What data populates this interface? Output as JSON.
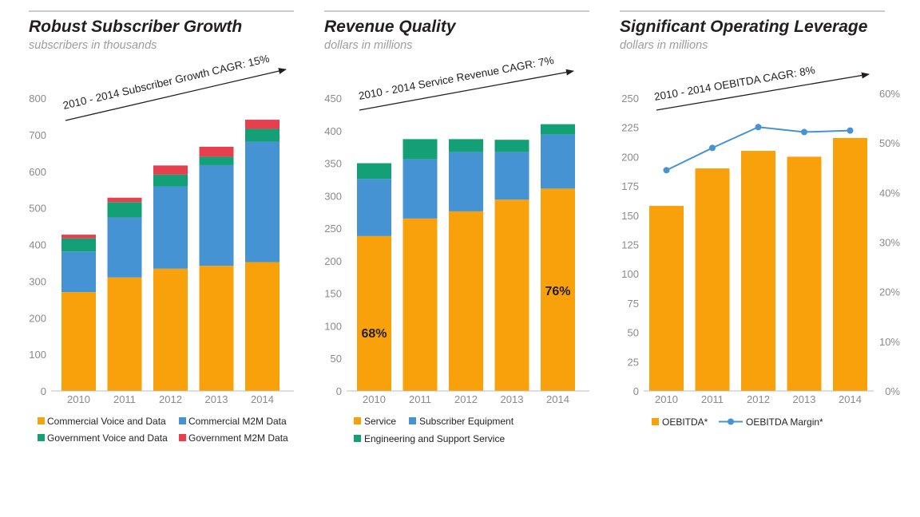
{
  "colors": {
    "commercial_voice": "#f8a10b",
    "commercial_m2m": "#4593d3",
    "government_voice": "#14a077",
    "government_m2m": "#e63f4e",
    "service": "#f8a10b",
    "subscriber_equipment": "#4593d3",
    "engineering": "#14a077",
    "oebitda": "#f8a10b",
    "margin_line": "#4593d3"
  },
  "chart_data": [
    {
      "type": "bar",
      "stacked": true,
      "title": "Robust Subscriber Growth",
      "subtitle": "subscribers in thousands",
      "annotation": "2010 - 2014 Subscriber Growth CAGR: 15%",
      "categories": [
        "2010",
        "2011",
        "2012",
        "2013",
        "2014"
      ],
      "ylim": [
        0,
        800
      ],
      "yticks": [
        "0",
        "100",
        "200",
        "300",
        "400",
        "500",
        "600",
        "700",
        "800"
      ],
      "series": [
        {
          "name": "Commercial Voice and Data",
          "values": [
            270,
            310,
            334,
            342,
            352
          ]
        },
        {
          "name": "Commercial M2M Data",
          "values": [
            111,
            164,
            225,
            275,
            329
          ]
        },
        {
          "name": "Government Voice and Data",
          "values": [
            36,
            42,
            32,
            23,
            35
          ]
        },
        {
          "name": "Government M2M Data",
          "values": [
            10,
            12,
            25,
            27,
            25
          ]
        }
      ]
    },
    {
      "type": "bar",
      "stacked": true,
      "title": "Revenue Quality",
      "subtitle": "dollars in millions",
      "annotation": "2010 - 2014 Service Revenue CAGR: 7%",
      "categories": [
        "2010",
        "2011",
        "2012",
        "2013",
        "2014"
      ],
      "ylim": [
        0,
        450
      ],
      "yticks": [
        "0",
        "50",
        "100",
        "150",
        "200",
        "250",
        "300",
        "350",
        "400",
        "450"
      ],
      "series": [
        {
          "name": "Service",
          "values": [
            238,
            265,
            276,
            294,
            311
          ]
        },
        {
          "name": "Subscriber Equipment",
          "values": [
            88,
            91,
            91,
            73,
            83
          ]
        },
        {
          "name": "Engineering and Support Service",
          "values": [
            24,
            31,
            20,
            19,
            16
          ]
        }
      ],
      "annotations": [
        {
          "category": "2010",
          "text": "68%"
        },
        {
          "category": "2014",
          "text": "76%"
        }
      ]
    },
    {
      "type": "bar",
      "title": "Significant Operating Leverage",
      "subtitle": "dollars in millions",
      "annotation": "2010 - 2014 OEBITDA CAGR: 8%",
      "categories": [
        "2010",
        "2011",
        "2012",
        "2013",
        "2014"
      ],
      "ylim": [
        0,
        250
      ],
      "yticks": [
        "0",
        "25",
        "50",
        "75",
        "100",
        "125",
        "150",
        "175",
        "200",
        "225",
        "250"
      ],
      "y2lim": [
        0,
        60
      ],
      "y2ticks": [
        "0%",
        "10%",
        "20%",
        "30%",
        "40%",
        "50%",
        "60%"
      ],
      "series": [
        {
          "name": "OEBITDA*",
          "type": "bar",
          "axis": "left",
          "values": [
            158,
            190,
            205,
            200,
            216
          ]
        },
        {
          "name": "OEBITDA Margin*",
          "type": "line",
          "axis": "right",
          "values": [
            44.5,
            49,
            53.2,
            52.2,
            52.5
          ]
        }
      ]
    }
  ]
}
